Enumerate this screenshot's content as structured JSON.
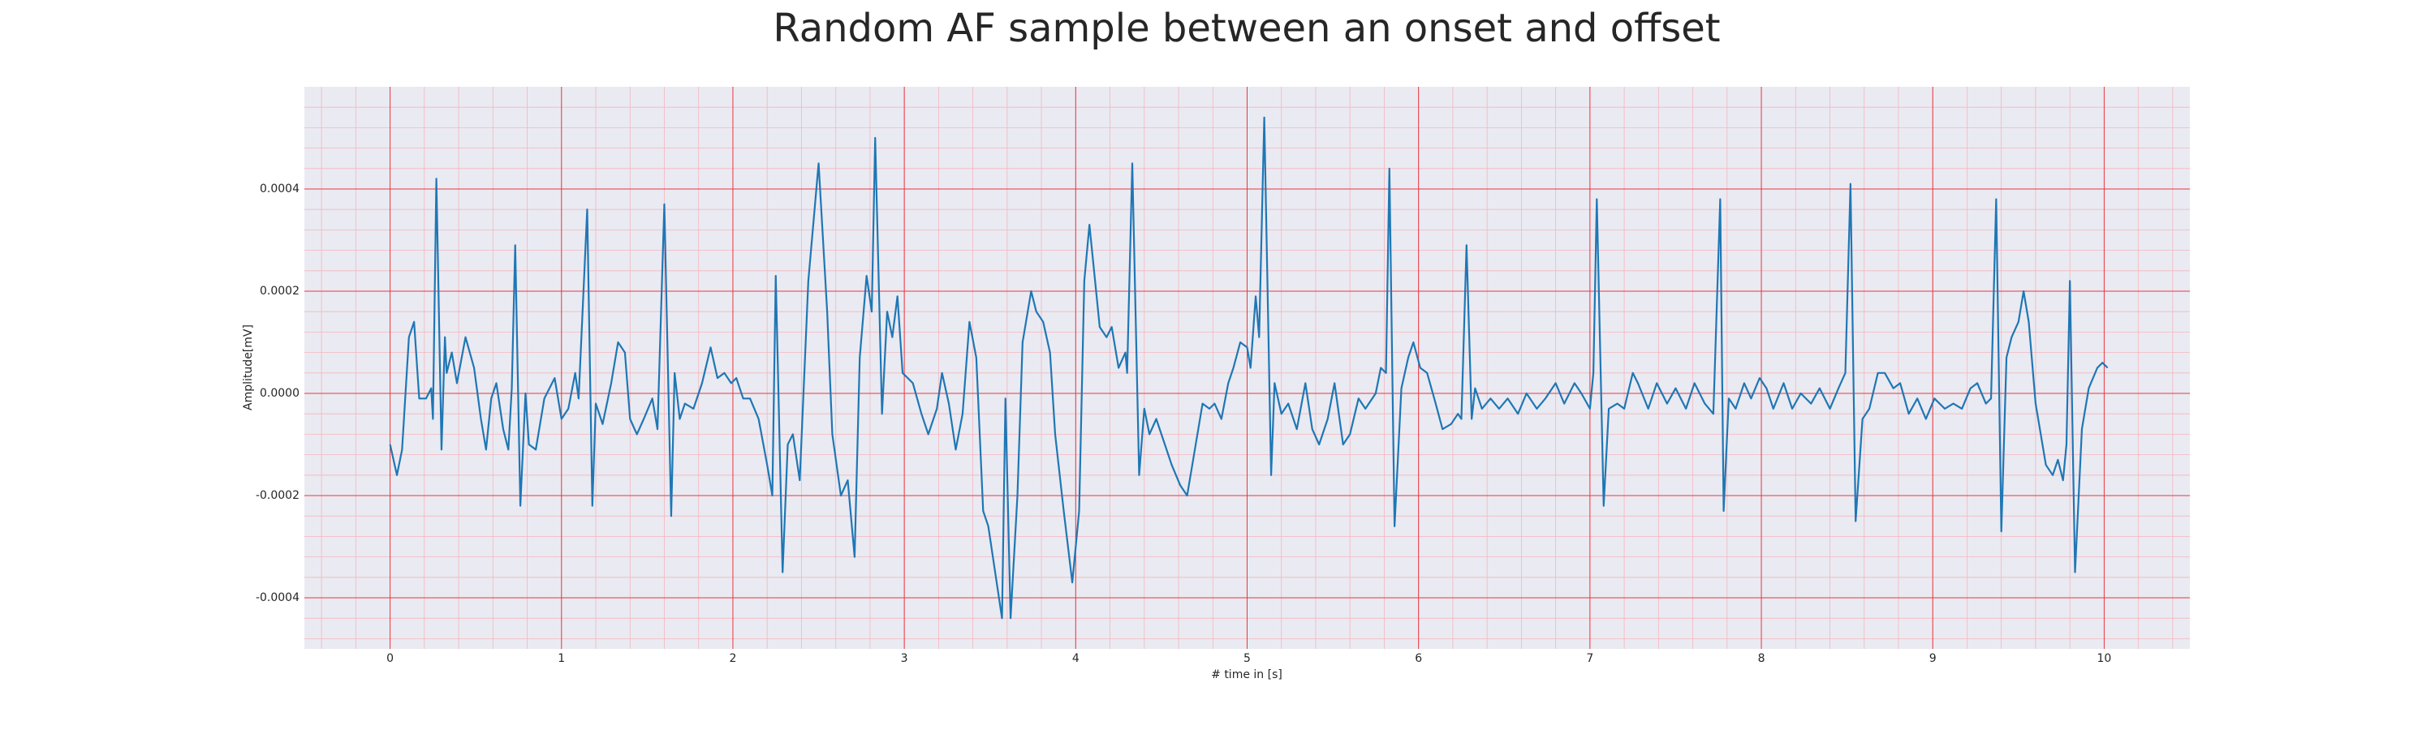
{
  "chart_data": {
    "type": "line",
    "title": "Random AF sample between an onset and offset",
    "x_label": "# time in [s]",
    "y_label": "Amplitude[mV]",
    "color": "#1f77b4",
    "grid": true,
    "minor_grid": true,
    "grid_color": "#e8383d",
    "minor_grid_color": "#f4b6bd",
    "background": "#eaeaf2",
    "xlim": [
      -0.5,
      10.5
    ],
    "xticks": [
      0,
      1,
      2,
      3,
      4,
      5,
      6,
      7,
      8,
      9,
      10
    ],
    "ylim": [
      -0.0005,
      0.0006
    ],
    "yticks": [
      -0.0004,
      -0.0002,
      {
        "value": 0,
        "label": "0.0000"
      },
      0.0002,
      0.0004
    ],
    "x": [
      0,
      0.04,
      0.07,
      0.11,
      0.14,
      0.17,
      0.21,
      0.24,
      0.25,
      0.27,
      0.3,
      0.32,
      0.33,
      0.36,
      0.39,
      0.44,
      0.49,
      0.53,
      0.56,
      0.59,
      0.62,
      0.66,
      0.69,
      0.71,
      0.73,
      0.76,
      0.79,
      0.81,
      0.85,
      0.9,
      0.96,
      1.0,
      1.04,
      1.08,
      1.1,
      1.15,
      1.18,
      1.2,
      1.24,
      1.29,
      1.33,
      1.37,
      1.4,
      1.44,
      1.48,
      1.53,
      1.56,
      1.6,
      1.64,
      1.66,
      1.69,
      1.72,
      1.77,
      1.82,
      1.87,
      1.91,
      1.95,
      1.99,
      2.02,
      2.06,
      2.1,
      2.15,
      2.2,
      2.23,
      2.25,
      2.29,
      2.32,
      2.35,
      2.39,
      2.44,
      2.5,
      2.55,
      2.58,
      2.63,
      2.67,
      2.71,
      2.74,
      2.78,
      2.81,
      2.83,
      2.87,
      2.9,
      2.93,
      2.96,
      2.99,
      3.05,
      3.1,
      3.14,
      3.19,
      3.22,
      3.26,
      3.3,
      3.34,
      3.38,
      3.42,
      3.46,
      3.49,
      3.53,
      3.57,
      3.59,
      3.62,
      3.66,
      3.69,
      3.74,
      3.77,
      3.81,
      3.85,
      3.88,
      3.93,
      3.98,
      4.02,
      4.05,
      4.08,
      4.11,
      4.14,
      4.18,
      4.21,
      4.25,
      4.29,
      4.3,
      4.33,
      4.37,
      4.4,
      4.43,
      4.47,
      4.52,
      4.56,
      4.61,
      4.65,
      4.7,
      4.74,
      4.78,
      4.81,
      4.85,
      4.89,
      4.92,
      4.96,
      5.0,
      5.02,
      5.05,
      5.07,
      5.1,
      5.14,
      5.16,
      5.2,
      5.24,
      5.29,
      5.34,
      5.38,
      5.42,
      5.47,
      5.51,
      5.56,
      5.6,
      5.65,
      5.69,
      5.75,
      5.78,
      5.81,
      5.83,
      5.86,
      5.9,
      5.94,
      5.97,
      6.01,
      6.05,
      6.1,
      6.14,
      6.19,
      6.23,
      6.25,
      6.28,
      6.31,
      6.33,
      6.37,
      6.42,
      6.47,
      6.52,
      6.58,
      6.63,
      6.69,
      6.74,
      6.8,
      6.85,
      6.91,
      6.95,
      7.0,
      7.02,
      7.04,
      7.08,
      7.11,
      7.16,
      7.2,
      7.25,
      7.28,
      7.34,
      7.39,
      7.45,
      7.5,
      7.56,
      7.61,
      7.67,
      7.72,
      7.76,
      7.78,
      7.81,
      7.85,
      7.9,
      7.94,
      7.99,
      8.03,
      8.07,
      8.13,
      8.18,
      8.23,
      8.29,
      8.34,
      8.4,
      8.45,
      8.49,
      8.52,
      8.55,
      8.59,
      8.63,
      8.68,
      8.72,
      8.77,
      8.81,
      8.86,
      8.91,
      8.96,
      9.01,
      9.07,
      9.12,
      9.17,
      9.22,
      9.26,
      9.31,
      9.34,
      9.37,
      9.4,
      9.43,
      9.46,
      9.5,
      9.53,
      9.56,
      9.6,
      9.66,
      9.7,
      9.73,
      9.76,
      9.78,
      9.8,
      9.83,
      9.87,
      9.91,
      9.96,
      9.99,
      10.02
    ],
    "values": [
      -0.0001,
      -0.00016,
      -0.00011,
      0.00011,
      0.00014,
      -1e-05,
      -1e-05,
      1e-05,
      -5e-05,
      0.00042,
      -0.00011,
      0.00011,
      4e-05,
      8e-05,
      2e-05,
      0.00011,
      5e-05,
      -5e-05,
      -0.00011,
      -1e-05,
      2e-05,
      -7e-05,
      -0.00011,
      1e-05,
      0.00029,
      -0.00022,
      0,
      -0.0001,
      -0.00011,
      -1e-05,
      3e-05,
      -5e-05,
      -3e-05,
      4e-05,
      -1e-05,
      0.00036,
      -0.00022,
      -2e-05,
      -6e-05,
      2e-05,
      0.0001,
      8e-05,
      -5e-05,
      -8e-05,
      -5e-05,
      -1e-05,
      -7e-05,
      0.00037,
      -0.00024,
      4e-05,
      -5e-05,
      -2e-05,
      -3e-05,
      2e-05,
      9e-05,
      3e-05,
      4e-05,
      2e-05,
      3e-05,
      -1e-05,
      -1e-05,
      -5e-05,
      -0.00014,
      -0.0002,
      0.00023,
      -0.00035,
      -0.0001,
      -8e-05,
      -0.00017,
      0.00022,
      0.00045,
      0.00016,
      -8e-05,
      -0.0002,
      -0.00017,
      -0.00032,
      7e-05,
      0.00023,
      0.00016,
      0.0005,
      -4e-05,
      0.00016,
      0.00011,
      0.00019,
      4e-05,
      2e-05,
      -4e-05,
      -8e-05,
      -3e-05,
      4e-05,
      -2e-05,
      -0.00011,
      -4e-05,
      0.00014,
      7e-05,
      -0.00023,
      -0.00026,
      -0.00035,
      -0.00044,
      -1e-05,
      -0.00044,
      -0.0002,
      0.0001,
      0.0002,
      0.00016,
      0.00014,
      8e-05,
      -8e-05,
      -0.00023,
      -0.00037,
      -0.00023,
      0.00022,
      0.00033,
      0.00023,
      0.00013,
      0.00011,
      0.00013,
      5e-05,
      8e-05,
      4e-05,
      0.00045,
      -0.00016,
      -3e-05,
      -8e-05,
      -5e-05,
      -0.0001,
      -0.00014,
      -0.00018,
      -0.0002,
      -0.0001,
      -2e-05,
      -3e-05,
      -2e-05,
      -5e-05,
      2e-05,
      5e-05,
      0.0001,
      9e-05,
      5e-05,
      0.00019,
      0.00011,
      0.00054,
      -0.00016,
      2e-05,
      -4e-05,
      -2e-05,
      -7e-05,
      2e-05,
      -7e-05,
      -0.0001,
      -5e-05,
      2e-05,
      -0.0001,
      -8e-05,
      -1e-05,
      -3e-05,
      0,
      5e-05,
      4e-05,
      0.00044,
      -0.00026,
      1e-05,
      7e-05,
      0.0001,
      5e-05,
      4e-05,
      -2e-05,
      -7e-05,
      -6e-05,
      -4e-05,
      -5e-05,
      0.00029,
      -5e-05,
      1e-05,
      -3e-05,
      -1e-05,
      -3e-05,
      -1e-05,
      -4e-05,
      0,
      -3e-05,
      -1e-05,
      2e-05,
      -2e-05,
      2e-05,
      0,
      -3e-05,
      4e-05,
      0.00038,
      -0.00022,
      -3e-05,
      -2e-05,
      -3e-05,
      4e-05,
      2e-05,
      -3e-05,
      2e-05,
      -2e-05,
      1e-05,
      -3e-05,
      2e-05,
      -2e-05,
      -4e-05,
      0.00038,
      -0.00023,
      -1e-05,
      -3e-05,
      2e-05,
      -1e-05,
      3e-05,
      1e-05,
      -3e-05,
      2e-05,
      -3e-05,
      0,
      -2e-05,
      1e-05,
      -3e-05,
      1e-05,
      4e-05,
      0.00041,
      -0.00025,
      -5e-05,
      -3e-05,
      4e-05,
      4e-05,
      1e-05,
      2e-05,
      -4e-05,
      -1e-05,
      -5e-05,
      -1e-05,
      -3e-05,
      -2e-05,
      -3e-05,
      1e-05,
      2e-05,
      -2e-05,
      -1e-05,
      0.00038,
      -0.00027,
      7e-05,
      0.00011,
      0.00014,
      0.0002,
      0.00014,
      -2e-05,
      -0.00014,
      -0.00016,
      -0.00013,
      -0.00017,
      -0.0001,
      0.00022,
      -0.00035,
      -7e-05,
      1e-05,
      5e-05,
      6e-05,
      5e-05
    ]
  }
}
